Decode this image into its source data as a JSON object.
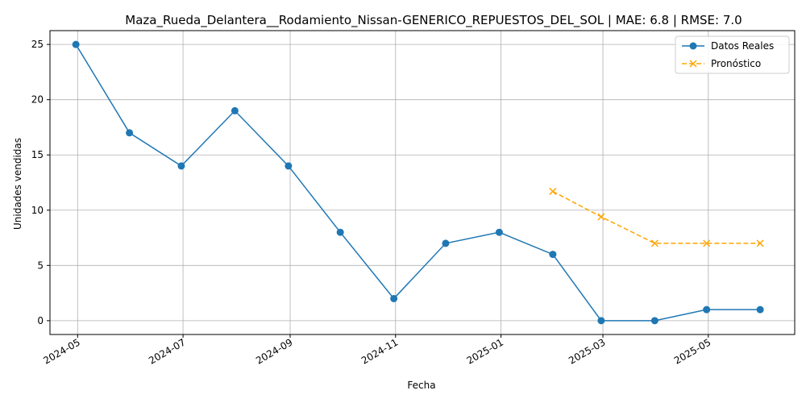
{
  "chart_data": {
    "type": "line",
    "title": "Maza_Rueda_Delantera__Rodamiento_Nissan-GENERICO_REPUESTOS_DEL_SOL | MAE: 6.8 | RMSE: 7.0",
    "xlabel": "Fecha",
    "ylabel": "Unidades vendidas",
    "ylim": [
      -1.25,
      26.25
    ],
    "xlim": [
      "2024-04-15",
      "2025-06-20"
    ],
    "grid": true,
    "legend_position": "top-right",
    "x_ticks": [
      "2024-05",
      "2024-07",
      "2024-09",
      "2024-11",
      "2025-01",
      "2025-03",
      "2025-05"
    ],
    "y_ticks": [
      0,
      5,
      10,
      15,
      20,
      25
    ],
    "series": [
      {
        "name": "Datos Reales",
        "color": "#1f77b4",
        "marker": "circle",
        "linestyle": "solid",
        "x": [
          "2024-04-30",
          "2024-05-31",
          "2024-06-30",
          "2024-07-31",
          "2024-08-31",
          "2024-09-30",
          "2024-10-31",
          "2024-11-30",
          "2024-12-31",
          "2025-01-31",
          "2025-02-28",
          "2025-03-31",
          "2025-04-30",
          "2025-05-31"
        ],
        "values": [
          25,
          17,
          14,
          19,
          14,
          8,
          2,
          7,
          8,
          6,
          0,
          0,
          1,
          1
        ]
      },
      {
        "name": "Pronóstico",
        "color": "#ffa500",
        "marker": "x",
        "linestyle": "dashed",
        "x": [
          "2025-01-31",
          "2025-02-28",
          "2025-03-31",
          "2025-04-30",
          "2025-05-31"
        ],
        "values": [
          11.7,
          9.4,
          7.0,
          7.0,
          7.0
        ]
      }
    ]
  }
}
